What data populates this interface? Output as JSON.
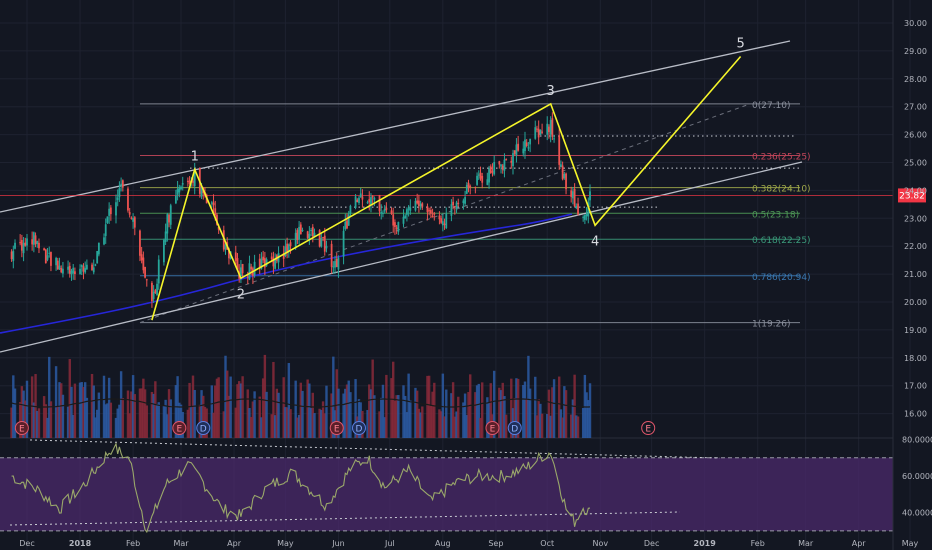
{
  "chart_data": {
    "type": "candlestick",
    "symbol_price_label": "23.82",
    "price_axis": {
      "min": 15.0,
      "max": 30.5,
      "ticks": [
        "30.00",
        "29.00",
        "28.00",
        "27.00",
        "26.00",
        "25.00",
        "24.00",
        "23.00",
        "22.00",
        "21.00",
        "20.00",
        "19.00",
        "18.00",
        "17.00",
        "16.00"
      ]
    },
    "time_axis": {
      "labels": [
        "Dec",
        "2018",
        "Feb",
        "Mar",
        "Apr",
        "May",
        "Jun",
        "Jul",
        "Aug",
        "Sep",
        "Oct",
        "Nov",
        "Dec",
        "2019",
        "Feb",
        "Mar",
        "Apr",
        "May"
      ]
    },
    "rsi_axis": {
      "ticks": [
        "80.0000",
        "60.0000",
        "40.0000"
      ],
      "overbought": 70,
      "oversold": 30
    },
    "wave_labels": [
      "1",
      "2",
      "3",
      "4",
      "5"
    ],
    "wave_points": [
      {
        "label": "",
        "date": "2018-02-12",
        "price": 19.35
      },
      {
        "label": "1",
        "date": "2018-03-09",
        "price": 24.75
      },
      {
        "label": "2",
        "date": "2018-04-05",
        "price": 20.85
      },
      {
        "label": "3",
        "date": "2018-10-03",
        "price": 27.1
      },
      {
        "label": "4",
        "date": "2018-10-29",
        "price": 22.75
      },
      {
        "label": "5",
        "date": "2019-01-22",
        "price": 28.8
      }
    ],
    "fib_levels": [
      {
        "label": "0(27.10)",
        "price": 27.1,
        "color": "#8a8f9c"
      },
      {
        "label": "0.236(25.25)",
        "price": 25.25,
        "color": "#c2465a"
      },
      {
        "label": "0.382(24.10)",
        "price": 24.1,
        "color": "#9fa84a"
      },
      {
        "label": "0.5(23.18)",
        "price": 23.18,
        "color": "#4f9a57"
      },
      {
        "label": "0.618(22.25)",
        "price": 22.25,
        "color": "#3a9a7a"
      },
      {
        "label": "0.786(20.94)",
        "price": 20.94,
        "color": "#3a78b0"
      },
      {
        "label": "1(19.26)",
        "price": 19.26,
        "color": "#8a8f9c"
      }
    ],
    "event_markers": [
      {
        "label": "E",
        "date": "2017-11-28",
        "future": false
      },
      {
        "label": "E",
        "date": "2018-02-28",
        "future": false
      },
      {
        "label": "D",
        "date": "2018-03-14",
        "future": false
      },
      {
        "label": "E",
        "date": "2018-05-31",
        "future": false
      },
      {
        "label": "D",
        "date": "2018-06-13",
        "future": false
      },
      {
        "label": "E",
        "date": "2018-08-30",
        "future": false
      },
      {
        "label": "D",
        "date": "2018-09-12",
        "future": false
      },
      {
        "label": "E",
        "date": "2018-11-29",
        "future": true
      }
    ],
    "price_anchors": [
      [
        "2017-11-22",
        21.8
      ],
      [
        "2017-12-05",
        22.3
      ],
      [
        "2017-12-15",
        21.4
      ],
      [
        "2017-12-28",
        21.1
      ],
      [
        "2018-01-10",
        21.4
      ],
      [
        "2018-01-18",
        23.2
      ],
      [
        "2018-01-25",
        24.1
      ],
      [
        "2018-02-01",
        23.0
      ],
      [
        "2018-02-07",
        21.0
      ],
      [
        "2018-02-12",
        19.8
      ],
      [
        "2018-02-20",
        22.8
      ],
      [
        "2018-03-01",
        24.1
      ],
      [
        "2018-03-09",
        24.5
      ],
      [
        "2018-03-20",
        23.2
      ],
      [
        "2018-03-28",
        21.8
      ],
      [
        "2018-04-05",
        21.0
      ],
      [
        "2018-04-20",
        21.4
      ],
      [
        "2018-05-01",
        21.8
      ],
      [
        "2018-05-10",
        22.6
      ],
      [
        "2018-05-22",
        22.2
      ],
      [
        "2018-05-30",
        21.3
      ],
      [
        "2018-06-08",
        23.3
      ],
      [
        "2018-06-15",
        23.9
      ],
      [
        "2018-06-25",
        23.4
      ],
      [
        "2018-07-05",
        22.9
      ],
      [
        "2018-07-15",
        23.6
      ],
      [
        "2018-07-25",
        23.2
      ],
      [
        "2018-08-03",
        23.0
      ],
      [
        "2018-08-14",
        24.0
      ],
      [
        "2018-08-25",
        24.5
      ],
      [
        "2018-09-05",
        25.0
      ],
      [
        "2018-09-15",
        25.5
      ],
      [
        "2018-09-24",
        26.0
      ],
      [
        "2018-10-03",
        26.3
      ],
      [
        "2018-10-08",
        25.0
      ],
      [
        "2018-10-12",
        24.3
      ],
      [
        "2018-10-18",
        23.4
      ],
      [
        "2018-10-23",
        23.0
      ],
      [
        "2018-10-26",
        23.82
      ]
    ],
    "rsi_anchors": [
      [
        "2017-11-22",
        60
      ],
      [
        "2017-12-08",
        52
      ],
      [
        "2017-12-20",
        42
      ],
      [
        "2018-01-05",
        57
      ],
      [
        "2018-01-20",
        76
      ],
      [
        "2018-01-30",
        69
      ],
      [
        "2018-02-05",
        45
      ],
      [
        "2018-02-09",
        30
      ],
      [
        "2018-02-20",
        55
      ],
      [
        "2018-03-05",
        66
      ],
      [
        "2018-03-12",
        59
      ],
      [
        "2018-03-25",
        42
      ],
      [
        "2018-04-05",
        38
      ],
      [
        "2018-04-18",
        52
      ],
      [
        "2018-05-05",
        62
      ],
      [
        "2018-05-25",
        44
      ],
      [
        "2018-06-08",
        64
      ],
      [
        "2018-06-18",
        70
      ],
      [
        "2018-06-28",
        54
      ],
      [
        "2018-07-12",
        63
      ],
      [
        "2018-07-25",
        46
      ],
      [
        "2018-08-08",
        56
      ],
      [
        "2018-08-20",
        60
      ],
      [
        "2018-09-05",
        60
      ],
      [
        "2018-09-18",
        64
      ],
      [
        "2018-09-28",
        71
      ],
      [
        "2018-10-03",
        73
      ],
      [
        "2018-10-08",
        56
      ],
      [
        "2018-10-12",
        42
      ],
      [
        "2018-10-17",
        35
      ],
      [
        "2018-10-22",
        43
      ],
      [
        "2018-10-26",
        40
      ]
    ],
    "grid": true,
    "colors": {
      "background": "#131722",
      "up": "#26a69a",
      "down": "#ef5350",
      "wave": "#f5f52a",
      "channel": "#b8bcc6",
      "ema": "#2626d9",
      "rsi": "#9aa86a",
      "rsi_band": "#4b2a6b",
      "current_price": "#f23645",
      "volume_up": "#2b5aa3",
      "volume_down": "#8a2a3a"
    }
  }
}
